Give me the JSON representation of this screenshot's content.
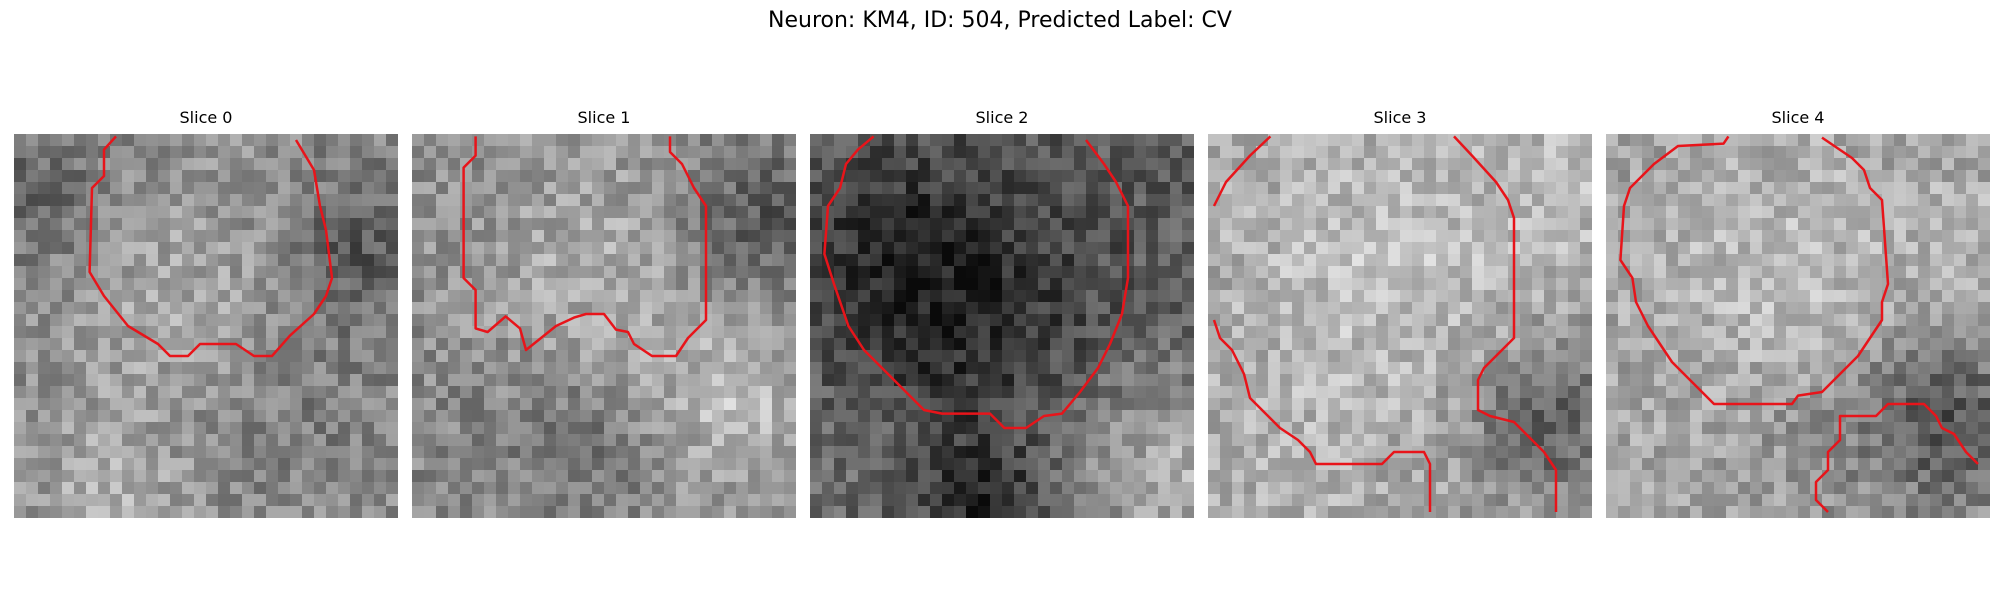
{
  "figure": {
    "title": "Neuron: KM4, ID: 504, Predicted Label: CV"
  },
  "panels": [
    {
      "title": "Slice 0"
    },
    {
      "title": "Slice 1"
    },
    {
      "title": "Slice 2"
    },
    {
      "title": "Slice 3"
    },
    {
      "title": "Slice 4"
    }
  ],
  "contour_color": "#e8141a",
  "image_colormap": "grayscale"
}
